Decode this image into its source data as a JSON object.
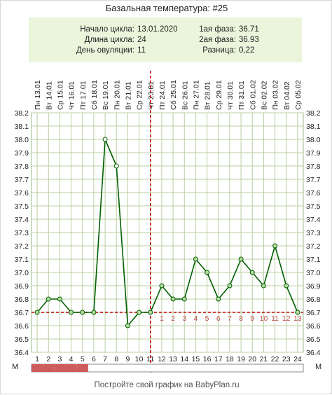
{
  "title": "Базальная температура: #25",
  "info": {
    "cycle_start_label": "Начало цикла:",
    "cycle_start_value": "13.01.2020",
    "cycle_length_label": "Длина цикла:",
    "cycle_length_value": "24",
    "ovulation_day_label": "День овуляции:",
    "ovulation_day_value": "11",
    "phase1_label": "1ая фаза:",
    "phase1_value": "36.71",
    "phase2_label": "2ая фаза:",
    "phase2_value": "36.93",
    "diff_label": "Разница:",
    "diff_value": "0,22"
  },
  "chart_data": {
    "type": "line",
    "dates": [
      "Пн 13.01",
      "Вт 14.01",
      "Ср 15.01",
      "Чт 16.01",
      "Пт 17.01",
      "Сб 18.01",
      "Вс 19.01",
      "Пн 20.01",
      "Вт 21.01",
      "Ср 22.01",
      "Чт 23.01",
      "Пт 24.01",
      "Сб 25.01",
      "Вс 26.01",
      "Пн 27.01",
      "Вт 28.01",
      "Ср 29.01",
      "Чт 30.01",
      "Пт 31.01",
      "Сб 01.02",
      "Вс 02.02",
      "Пн 03.02",
      "Вт 04.02",
      "Ср 05.02"
    ],
    "days": [
      "1",
      "2",
      "3",
      "4",
      "5",
      "6",
      "7",
      "8",
      "9",
      "10",
      "11",
      "12",
      "13",
      "14",
      "15",
      "16",
      "17",
      "18",
      "19",
      "20",
      "21",
      "22",
      "23",
      "24"
    ],
    "temperatures": [
      36.7,
      36.8,
      36.8,
      36.7,
      36.7,
      36.7,
      38.0,
      37.8,
      36.6,
      36.7,
      36.7,
      36.9,
      36.8,
      36.8,
      37.1,
      37.0,
      36.8,
      36.9,
      37.1,
      37.0,
      36.9,
      37.2,
      36.9,
      36.7
    ],
    "hollow_point_days": [
      7,
      8
    ],
    "y_ticks": [
      "36.4",
      "36.5",
      "36.6",
      "36.7",
      "36.8",
      "36.9",
      "37.0",
      "37.1",
      "37.2",
      "37.3",
      "37.4",
      "37.5",
      "37.6",
      "37.7",
      "37.8",
      "37.9",
      "38.0",
      "38.1",
      "38.2"
    ],
    "ylim": [
      36.4,
      38.2
    ],
    "coverline": 36.7,
    "ovulation_day": 11,
    "luteal_day_labels": [
      "1",
      "2",
      "3",
      "4",
      "5",
      "6",
      "7",
      "8",
      "9",
      "10",
      "11",
      "12",
      "13"
    ],
    "menstruation_days": [
      1,
      2,
      3,
      4,
      5
    ],
    "menstruation_label": "М",
    "grid": true,
    "colors": {
      "line": "#006000",
      "marker_fill": "#b8d8a0",
      "coverline": "#c00000",
      "grid": "#b8cfa0",
      "luteal_labels": "#c05050",
      "menstruation": "#cd5c5c"
    }
  },
  "footer": "Постройте свой график на BabyPlan.ru"
}
